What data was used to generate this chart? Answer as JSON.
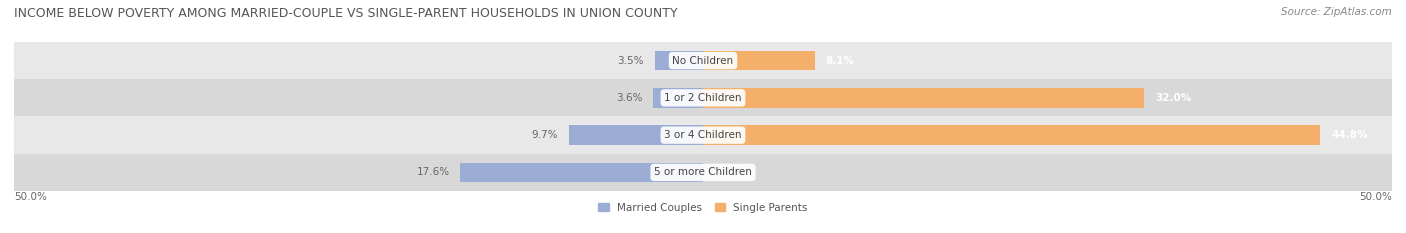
{
  "title": "INCOME BELOW POVERTY AMONG MARRIED-COUPLE VS SINGLE-PARENT HOUSEHOLDS IN UNION COUNTY",
  "source": "Source: ZipAtlas.com",
  "categories": [
    "No Children",
    "1 or 2 Children",
    "3 or 4 Children",
    "5 or more Children"
  ],
  "married_values": [
    3.5,
    3.6,
    9.7,
    17.6
  ],
  "single_values": [
    8.1,
    32.0,
    44.8,
    0.0
  ],
  "married_color": "#9badd4",
  "single_color": "#f4b06a",
  "married_label": "Married Couples",
  "single_label": "Single Parents",
  "axis_min": -50.0,
  "axis_max": 50.0,
  "axis_label_left": "50.0%",
  "axis_label_right": "50.0%",
  "bar_height": 0.52,
  "row_bg_colors": [
    "#e8e8e8",
    "#d8d8d8",
    "#e8e8e8",
    "#d8d8d8"
  ],
  "title_fontsize": 9,
  "source_fontsize": 7.5,
  "label_fontsize": 7.5,
  "category_fontsize": 7.5
}
